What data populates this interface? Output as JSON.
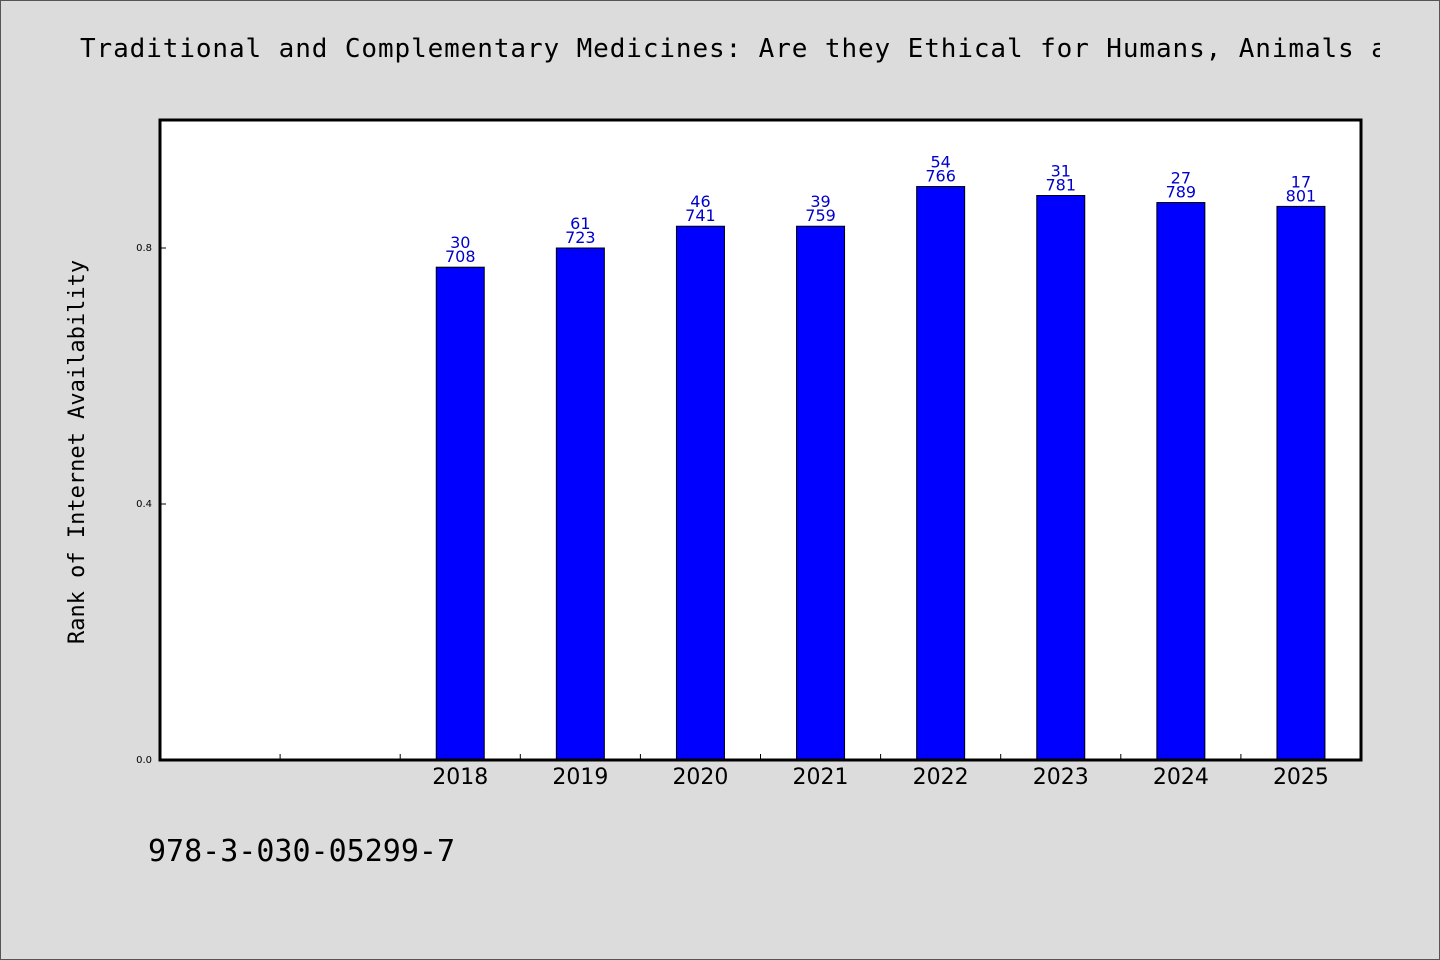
{
  "title": "Traditional and Complementary Medicines: Are they Ethical for Humans, Animals and",
  "footer_text": "978-3-030-05299-7",
  "colors": {
    "background": "#dcdcdc",
    "plot_background": "#ffffff",
    "bar_fill": "#0000ff",
    "label_color": "#0000cc"
  },
  "chart_data": {
    "type": "bar",
    "ylabel": "Rank of Internet Availability",
    "xlabel": "",
    "ylim": [
      0,
      1.0
    ],
    "yticks": [
      0.0,
      0.4,
      0.8
    ],
    "ytick_labels": [
      "0.0",
      "0.4",
      "0.8"
    ],
    "categories": [
      "",
      "",
      "2018",
      "2019",
      "2020",
      "2021",
      "2022",
      "2023",
      "2024",
      "2025"
    ],
    "values": [
      null,
      null,
      0.77,
      0.8,
      0.834,
      0.834,
      0.896,
      0.882,
      0.871,
      0.865
    ],
    "label_top": [
      "",
      "",
      "30",
      "61",
      "46",
      "39",
      "54",
      "31",
      "27",
      "17"
    ],
    "label_bottom": [
      "",
      "",
      "708",
      "723",
      "741",
      "759",
      "766",
      "781",
      "789",
      "801"
    ],
    "grid": false,
    "legend": "none"
  }
}
